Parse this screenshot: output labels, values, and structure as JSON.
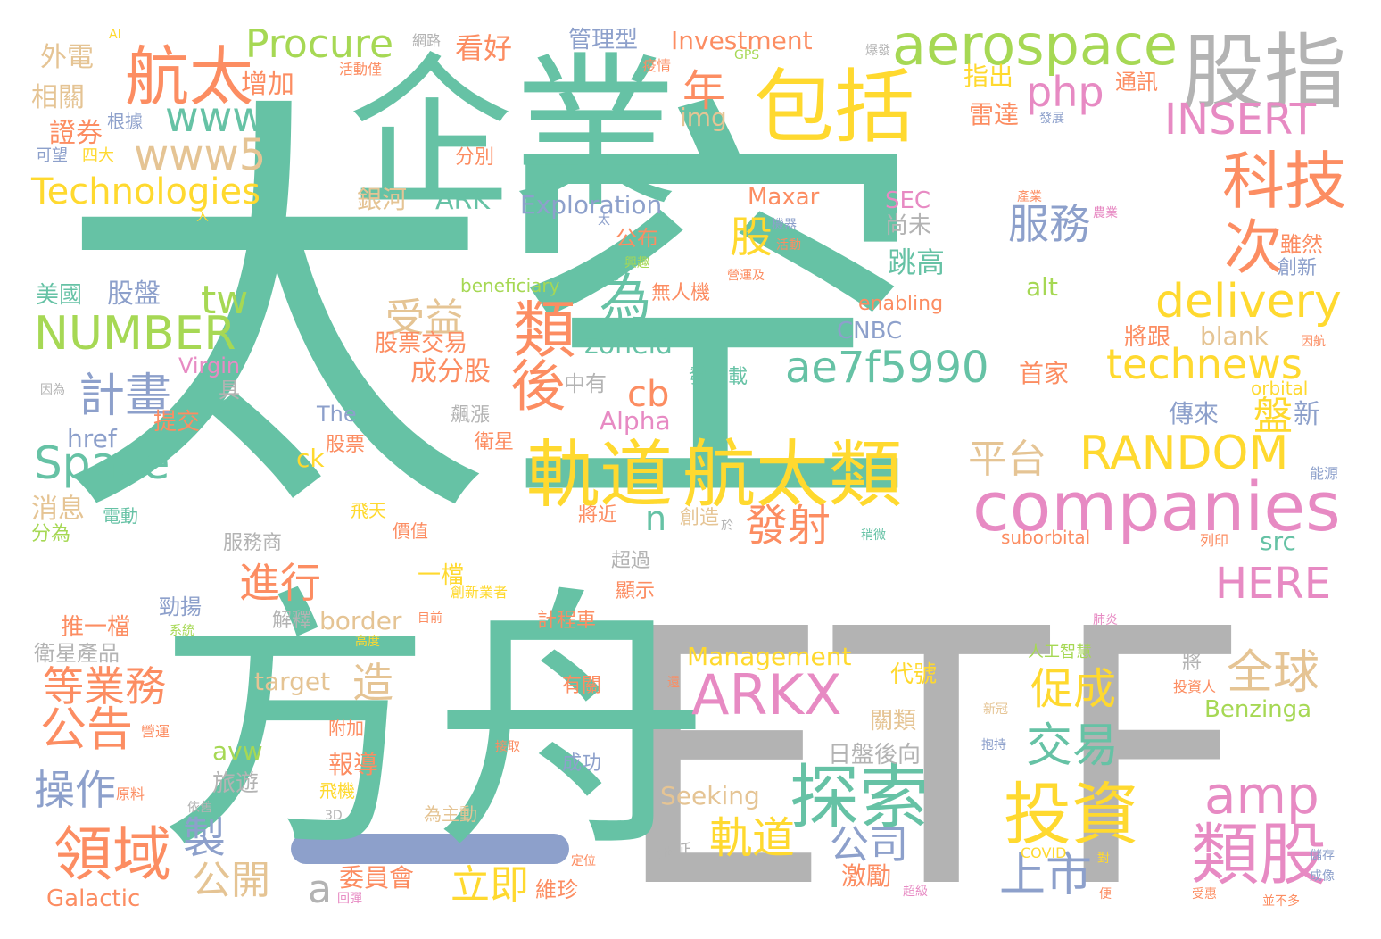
{
  "palette": {
    "teal": "#66c2a5",
    "gray": "#b3b3b3",
    "orange": "#fc8d62",
    "yellow": "#ffd92f",
    "pink": "#e78ac3",
    "green": "#a6d854",
    "blue": "#8da0cb",
    "tan": "#e5c494"
  },
  "words": [
    {
      "text": "太空",
      "color": "#66c2a5"
    },
    {
      "text": "企業",
      "color": "#66c2a5"
    },
    {
      "text": "ETF",
      "color": "#b3b3b3"
    },
    {
      "text": "方舟",
      "color": "#66c2a5"
    },
    {
      "text": "股指",
      "color": "#b3b3b3"
    },
    {
      "text": "aerospace",
      "color": "#a6d854"
    },
    {
      "text": "包括",
      "color": "#ffd92f"
    },
    {
      "text": "companies",
      "color": "#e78ac3"
    },
    {
      "text": "軌道",
      "color": "#ffd92f"
    },
    {
      "text": "航太類",
      "color": "#ffd92f"
    },
    {
      "text": "ARKX",
      "color": "#e78ac3"
    },
    {
      "text": "探索",
      "color": "#66c2a5"
    },
    {
      "text": "投資",
      "color": "#ffd92f"
    },
    {
      "text": "類股",
      "color": "#e78ac3"
    },
    {
      "text": "航太",
      "color": "#fc8d62"
    },
    {
      "text": "科技",
      "color": "#fc8d62"
    },
    {
      "text": "ae7f5990",
      "color": "#66c2a5"
    },
    {
      "text": "technews",
      "color": "#ffd92f"
    },
    {
      "text": "NUMBER",
      "color": "#a6d854"
    },
    {
      "text": "Space",
      "color": "#66c2a5"
    },
    {
      "text": "RANDOM",
      "color": "#ffd92f"
    },
    {
      "text": "delivery",
      "color": "#ffd92f"
    },
    {
      "text": "INSERT",
      "color": "#e78ac3"
    },
    {
      "text": "www5",
      "color": "#e5c494"
    },
    {
      "text": "Technologies",
      "color": "#ffd92f"
    },
    {
      "text": "Procure",
      "color": "#a6d854"
    },
    {
      "text": "www",
      "color": "#66c2a5"
    },
    {
      "text": "php",
      "color": "#e78ac3"
    },
    {
      "text": "amp",
      "color": "#e78ac3"
    },
    {
      "text": "HERE",
      "color": "#e78ac3"
    },
    {
      "text": "次",
      "color": "#fc8d62"
    },
    {
      "text": "類",
      "color": "#fc8d62"
    },
    {
      "text": "後",
      "color": "#fc8d62"
    },
    {
      "text": "為",
      "color": "#66c2a5"
    },
    {
      "text": "服務",
      "color": "#8da0cb"
    },
    {
      "text": "股",
      "color": "#ffd92f"
    },
    {
      "text": "領域",
      "color": "#fc8d62"
    },
    {
      "text": "公告",
      "color": "#fc8d62"
    },
    {
      "text": "全球",
      "color": "#e5c494"
    },
    {
      "text": "交易",
      "color": "#66c2a5"
    },
    {
      "text": "上市",
      "color": "#8da0cb"
    },
    {
      "text": "促成",
      "color": "#ffd92f"
    },
    {
      "text": "發射",
      "color": "#fc8d62"
    },
    {
      "text": "平台",
      "color": "#e5c494"
    },
    {
      "text": "計畫",
      "color": "#8da0cb"
    },
    {
      "text": "等業務",
      "color": "#fc8d62"
    },
    {
      "text": "操作",
      "color": "#8da0cb"
    },
    {
      "text": "進行",
      "color": "#fc8d62"
    },
    {
      "text": "受益",
      "color": "#e5c494"
    },
    {
      "text": "軌道",
      "color": "#ffd92f"
    },
    {
      "text": "立即",
      "color": "#ffd92f"
    },
    {
      "text": "公開",
      "color": "#e5c494"
    },
    {
      "text": "製",
      "color": "#8da0cb"
    },
    {
      "text": "造",
      "color": "#e5c494"
    },
    {
      "text": "年",
      "color": "#fc8d62"
    },
    {
      "text": "公司",
      "color": "#8da0cb"
    },
    {
      "text": "盤",
      "color": "#ffd92f"
    },
    {
      "text": "tw",
      "color": "#a6d854"
    },
    {
      "text": "cb",
      "color": "#fc8d62"
    },
    {
      "text": "n",
      "color": "#66c2a5"
    },
    {
      "text": "a",
      "color": "#b3b3b3"
    },
    {
      "text": "Investment",
      "color": "#fc8d62"
    },
    {
      "text": "Exploration",
      "color": "#8da0cb"
    },
    {
      "text": "zoneid",
      "color": "#66c2a5"
    },
    {
      "text": "Management",
      "color": "#ffd92f"
    },
    {
      "text": "Seeking",
      "color": "#e5c494"
    },
    {
      "text": "Benzinga",
      "color": "#a6d854"
    },
    {
      "text": "border",
      "color": "#e5c494"
    },
    {
      "text": "target",
      "color": "#e5c494"
    },
    {
      "text": "ARK",
      "color": "#66c2a5"
    },
    {
      "text": "Alpha",
      "color": "#e78ac3"
    },
    {
      "text": "Maxar",
      "color": "#fc8d62"
    },
    {
      "text": "SEC",
      "color": "#e78ac3"
    },
    {
      "text": "CNBC",
      "color": "#8da0cb"
    },
    {
      "text": "enabling",
      "color": "#fc8d62"
    },
    {
      "text": "Galactic",
      "color": "#fc8d62"
    },
    {
      "text": "Virgin",
      "color": "#e78ac3"
    },
    {
      "text": "img",
      "color": "#e5c494"
    },
    {
      "text": "alt",
      "color": "#a6d854"
    },
    {
      "text": "blank",
      "color": "#e5c494"
    },
    {
      "text": "src",
      "color": "#66c2a5"
    },
    {
      "text": "avw",
      "color": "#a6d854"
    },
    {
      "text": "href",
      "color": "#8da0cb"
    },
    {
      "text": "ck",
      "color": "#ffd92f"
    },
    {
      "text": "The",
      "color": "#8da0cb"
    },
    {
      "text": "beneficiary",
      "color": "#a6d854"
    },
    {
      "text": "orbital",
      "color": "#ffd92f"
    },
    {
      "text": "suborbital",
      "color": "#fc8d62"
    },
    {
      "text": "COVID",
      "color": "#ffd92f"
    },
    {
      "text": "GPS",
      "color": "#a6d854"
    },
    {
      "text": "AI",
      "color": "#ffd92f"
    },
    {
      "text": "3D",
      "color": "#b3b3b3"
    },
    {
      "text": "外電",
      "color": "#e5c494"
    },
    {
      "text": "相關",
      "color": "#e5c494"
    },
    {
      "text": "證券",
      "color": "#fc8d62"
    },
    {
      "text": "增加",
      "color": "#fc8d62"
    },
    {
      "text": "看好",
      "color": "#fc8d62"
    },
    {
      "text": "管理型",
      "color": "#8da0cb"
    },
    {
      "text": "指出",
      "color": "#ffd92f"
    },
    {
      "text": "雷達",
      "color": "#fc8d62"
    },
    {
      "text": "通訊",
      "color": "#fc8d62"
    },
    {
      "text": "跳高",
      "color": "#66c2a5"
    },
    {
      "text": "尚未",
      "color": "#b3b3b3"
    },
    {
      "text": "雖然",
      "color": "#fc8d62"
    },
    {
      "text": "創新",
      "color": "#8da0cb"
    },
    {
      "text": "將跟",
      "color": "#fc8d62"
    },
    {
      "text": "首家",
      "color": "#fc8d62"
    },
    {
      "text": "傳來",
      "color": "#8da0cb"
    },
    {
      "text": "新",
      "color": "#8da0cb"
    },
    {
      "text": "美國",
      "color": "#66c2a5"
    },
    {
      "text": "股盤",
      "color": "#8da0cb"
    },
    {
      "text": "股票交易",
      "color": "#fc8d62"
    },
    {
      "text": "成分股",
      "color": "#fc8d62"
    },
    {
      "text": "中有",
      "color": "#b3b3b3"
    },
    {
      "text": "發射載",
      "color": "#66c2a5"
    },
    {
      "text": "無人機",
      "color": "#fc8d62"
    },
    {
      "text": "公布",
      "color": "#fc8d62"
    },
    {
      "text": "銀河",
      "color": "#e5c494"
    },
    {
      "text": "提交",
      "color": "#fc8d62"
    },
    {
      "text": "具",
      "color": "#b3b3b3"
    },
    {
      "text": "股票",
      "color": "#fc8d62"
    },
    {
      "text": "衛星",
      "color": "#fc8d62"
    },
    {
      "text": "飆漲",
      "color": "#b3b3b3"
    },
    {
      "text": "消息",
      "color": "#e5c494"
    },
    {
      "text": "分為",
      "color": "#a6d854"
    },
    {
      "text": "電動",
      "color": "#66c2a5"
    },
    {
      "text": "飛天",
      "color": "#ffd92f"
    },
    {
      "text": "價值",
      "color": "#fc8d62"
    },
    {
      "text": "將近",
      "color": "#fc8d62"
    },
    {
      "text": "創造",
      "color": "#e5c494"
    },
    {
      "text": "服務商",
      "color": "#b3b3b3"
    },
    {
      "text": "一檔",
      "color": "#ffd92f"
    },
    {
      "text": "超過",
      "color": "#b3b3b3"
    },
    {
      "text": "顯示",
      "color": "#fc8d62"
    },
    {
      "text": "推一檔",
      "color": "#fc8d62"
    },
    {
      "text": "勁揚",
      "color": "#8da0cb"
    },
    {
      "text": "衛星產品",
      "color": "#b3b3b3"
    },
    {
      "text": "解釋",
      "color": "#b3b3b3"
    },
    {
      "text": "計程車",
      "color": "#fc8d62"
    },
    {
      "text": "日盤後向",
      "color": "#b3b3b3"
    },
    {
      "text": "代號",
      "color": "#ffd92f"
    },
    {
      "text": "關類",
      "color": "#e5c494"
    },
    {
      "text": "報導",
      "color": "#fc8d62"
    },
    {
      "text": "旅遊",
      "color": "#b3b3b3"
    },
    {
      "text": "附加",
      "color": "#fc8d62"
    },
    {
      "text": "成功",
      "color": "#8da0cb"
    },
    {
      "text": "有關",
      "color": "#fc8d62"
    },
    {
      "text": "飛機",
      "color": "#ffd92f"
    },
    {
      "text": "為主動",
      "color": "#e5c494"
    },
    {
      "text": "激勵",
      "color": "#fc8d62"
    },
    {
      "text": "委員會",
      "color": "#fc8d62"
    },
    {
      "text": "維珍",
      "color": "#fc8d62"
    },
    {
      "text": "拖延",
      "color": "#b3b3b3"
    },
    {
      "text": "將",
      "color": "#b3b3b3"
    },
    {
      "text": "分別",
      "color": "#fc8d62"
    },
    {
      "text": "根據",
      "color": "#8da0cb"
    },
    {
      "text": "可望",
      "color": "#8da0cb"
    },
    {
      "text": "四大",
      "color": "#ffd92f"
    },
    {
      "text": "網路",
      "color": "#b3b3b3"
    },
    {
      "text": "活動僅",
      "color": "#fc8d62"
    },
    {
      "text": "疫情",
      "color": "#fc8d62"
    },
    {
      "text": "爆發",
      "color": "#b3b3b3"
    },
    {
      "text": "發展",
      "color": "#8da0cb"
    },
    {
      "text": "產業",
      "color": "#fc8d62"
    },
    {
      "text": "農業",
      "color": "#e78ac3"
    },
    {
      "text": "機器",
      "color": "#8da0cb"
    },
    {
      "text": "活動",
      "color": "#fc8d62"
    },
    {
      "text": "興趣",
      "color": "#a6d854"
    },
    {
      "text": "營運及",
      "color": "#fc8d62"
    },
    {
      "text": "因為",
      "color": "#b3b3b3"
    },
    {
      "text": "因航",
      "color": "#fc8d62"
    },
    {
      "text": "能源",
      "color": "#8da0cb"
    },
    {
      "text": "列印",
      "color": "#fc8d62"
    },
    {
      "text": "稍微",
      "color": "#66c2a5"
    },
    {
      "text": "於",
      "color": "#b3b3b3"
    },
    {
      "text": "創新業者",
      "color": "#ffd92f"
    },
    {
      "text": "目前",
      "color": "#fc8d62"
    },
    {
      "text": "高度",
      "color": "#ffd92f"
    },
    {
      "text": "系統",
      "color": "#a6d854"
    },
    {
      "text": "營運",
      "color": "#fc8d62"
    },
    {
      "text": "原料",
      "color": "#fc8d62"
    },
    {
      "text": "依舊",
      "color": "#b3b3b3"
    },
    {
      "text": "接取",
      "color": "#fc8d62"
    },
    {
      "text": "人工智慧",
      "color": "#a6d854"
    },
    {
      "text": "肺炎",
      "color": "#e78ac3"
    },
    {
      "text": "還",
      "color": "#fc8d62"
    },
    {
      "text": "投資人",
      "color": "#fc8d62"
    },
    {
      "text": "新冠",
      "color": "#e5c494"
    },
    {
      "text": "抱持",
      "color": "#8da0cb"
    },
    {
      "text": "儲存",
      "color": "#8da0cb"
    },
    {
      "text": "成像",
      "color": "#8da0cb"
    },
    {
      "text": "受惠",
      "color": "#fc8d62"
    },
    {
      "text": "並不多",
      "color": "#fc8d62"
    },
    {
      "text": "定位",
      "color": "#fc8d62"
    },
    {
      "text": "對",
      "color": "#ffd92f"
    },
    {
      "text": "超級",
      "color": "#e78ac3"
    },
    {
      "text": "便",
      "color": "#fc8d62"
    },
    {
      "text": "回彈",
      "color": "#e78ac3"
    },
    {
      "text": "太",
      "color": "#8da0cb"
    },
    {
      "text": "入",
      "color": "#ffd92f"
    }
  ]
}
